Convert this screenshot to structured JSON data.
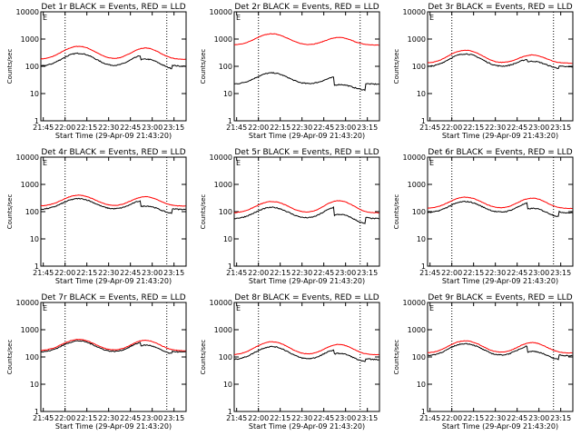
{
  "chart_data": {
    "type": "line",
    "title_template": "Det {d} BLACK = Events, RED = LLD",
    "xlabel": "Start Time (29-Apr-09 21:43:20)",
    "ylabel": "Counts/sec",
    "x_ticks": [
      "21:45",
      "22:00",
      "22:15",
      "22:30",
      "22:45",
      "23:00",
      "23:15"
    ],
    "y_ticks": [
      "1",
      "10",
      "100",
      "1000",
      "10000"
    ],
    "ylim": [
      1,
      10000
    ],
    "xlim_minutes": [
      0,
      100
    ],
    "y_scale": "log",
    "series_names": [
      "Events",
      "LLD"
    ],
    "colors": {
      "events": "#000000",
      "lld": "#ff0000",
      "vline": "#000000"
    },
    "vlines_minutes": [
      16.7,
      86.7
    ],
    "corner_label": "E",
    "panels": [
      {
        "det": "1r",
        "events_base": 100,
        "lld_base": 180,
        "peak1": 3.0,
        "peak2": 2.6,
        "dip": 0.7
      },
      {
        "det": "2r",
        "events_base": 22,
        "lld_base": 600,
        "peak1": 2.6,
        "peak2": 1.9,
        "dip": 0.5
      },
      {
        "det": "3r",
        "events_base": 95,
        "lld_base": 130,
        "peak1": 3.0,
        "peak2": 2.0,
        "dip": 0.8
      },
      {
        "det": "4r",
        "events_base": 120,
        "lld_base": 160,
        "peak1": 2.5,
        "peak2": 2.2,
        "dip": 0.6
      },
      {
        "det": "5r",
        "events_base": 55,
        "lld_base": 90,
        "peak1": 2.6,
        "peak2": 2.8,
        "dip": 0.5
      },
      {
        "det": "6r",
        "events_base": 90,
        "lld_base": 130,
        "peak1": 2.6,
        "peak2": 2.4,
        "dip": 0.6
      },
      {
        "det": "7r",
        "events_base": 150,
        "lld_base": 170,
        "peak1": 2.6,
        "peak2": 2.4,
        "dip": 0.75
      },
      {
        "det": "8r",
        "events_base": 80,
        "lld_base": 120,
        "peak1": 3.0,
        "peak2": 2.4,
        "dip": 0.7
      },
      {
        "det": "9r",
        "events_base": 110,
        "lld_base": 140,
        "peak1": 2.8,
        "peak2": 2.4,
        "dip": 0.6
      }
    ]
  }
}
